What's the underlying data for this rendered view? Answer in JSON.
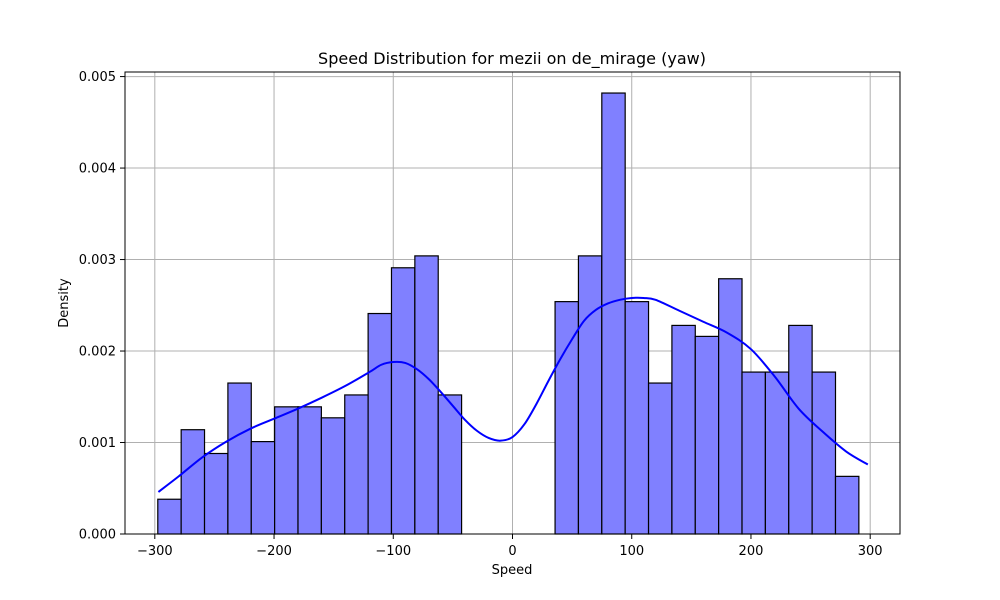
{
  "chart_data": {
    "type": "bar",
    "title": "Speed Distribution for mezii on de_mirage (yaw)",
    "xlabel": "Speed",
    "ylabel": "Density",
    "xlim": [
      -325,
      325
    ],
    "ylim": [
      0,
      0.00505
    ],
    "x_ticks": [
      -300,
      -200,
      -100,
      0,
      100,
      200,
      300
    ],
    "x_tick_labels": [
      "−300",
      "−200",
      "−100",
      "0",
      "100",
      "200",
      "300"
    ],
    "y_ticks": [
      0,
      0.001,
      0.002,
      0.003,
      0.004,
      0.005
    ],
    "y_tick_labels": [
      "0.000",
      "0.001",
      "0.002",
      "0.003",
      "0.004",
      "0.005"
    ],
    "grid": true,
    "bar_color": "#8080ff",
    "bar_edge_color": "#000000",
    "kde_color": "#0000ff",
    "bin_edges": [
      -297.5,
      -277.9,
      -258.3,
      -238.7,
      -219.1,
      -199.5,
      -179.9,
      -160.3,
      -140.7,
      -121.1,
      -101.5,
      -81.9,
      -62.3,
      -42.7,
      -23.1,
      -3.5,
      16.1,
      35.7,
      55.3,
      74.9,
      94.5,
      114.1,
      133.7,
      153.3,
      172.9,
      192.5,
      212.1,
      231.7,
      251.3,
      270.9,
      290.5
    ],
    "values": [
      0.00038,
      0.00114,
      0.00088,
      0.00165,
      0.00101,
      0.00139,
      0.00139,
      0.00127,
      0.00152,
      0.00241,
      0.00291,
      0.00304,
      0.00152,
      0,
      0,
      0,
      0,
      0.00254,
      0.00304,
      0.00482,
      0.00254,
      0.00165,
      0.00228,
      0.00216,
      0.00279,
      0.00177,
      0.00177,
      0.00228,
      0.00177,
      0.00063
    ],
    "kde": {
      "x": [
        -297,
        -280,
        -260,
        -240,
        -220,
        -200,
        -180,
        -160,
        -140,
        -120,
        -110,
        -100,
        -90,
        -80,
        -70,
        -60,
        -50,
        -40,
        -30,
        -20,
        -10,
        0,
        10,
        20,
        30,
        40,
        50,
        60,
        70,
        80,
        90,
        100,
        110,
        120,
        140,
        160,
        180,
        200,
        220,
        240,
        260,
        280,
        298
      ],
      "y": [
        0.00046,
        0.00063,
        0.00084,
        0.00101,
        0.00115,
        0.00126,
        0.00137,
        0.00149,
        0.00162,
        0.00177,
        0.00185,
        0.00188,
        0.00187,
        0.0018,
        0.00169,
        0.00155,
        0.0014,
        0.00125,
        0.00113,
        0.00105,
        0.00102,
        0.00106,
        0.0012,
        0.00142,
        0.00167,
        0.00191,
        0.00213,
        0.00233,
        0.00245,
        0.00252,
        0.00256,
        0.00258,
        0.00258,
        0.00256,
        0.00244,
        0.00232,
        0.0022,
        0.00202,
        0.00172,
        0.00137,
        0.00112,
        0.0009,
        0.00076
      ]
    }
  }
}
